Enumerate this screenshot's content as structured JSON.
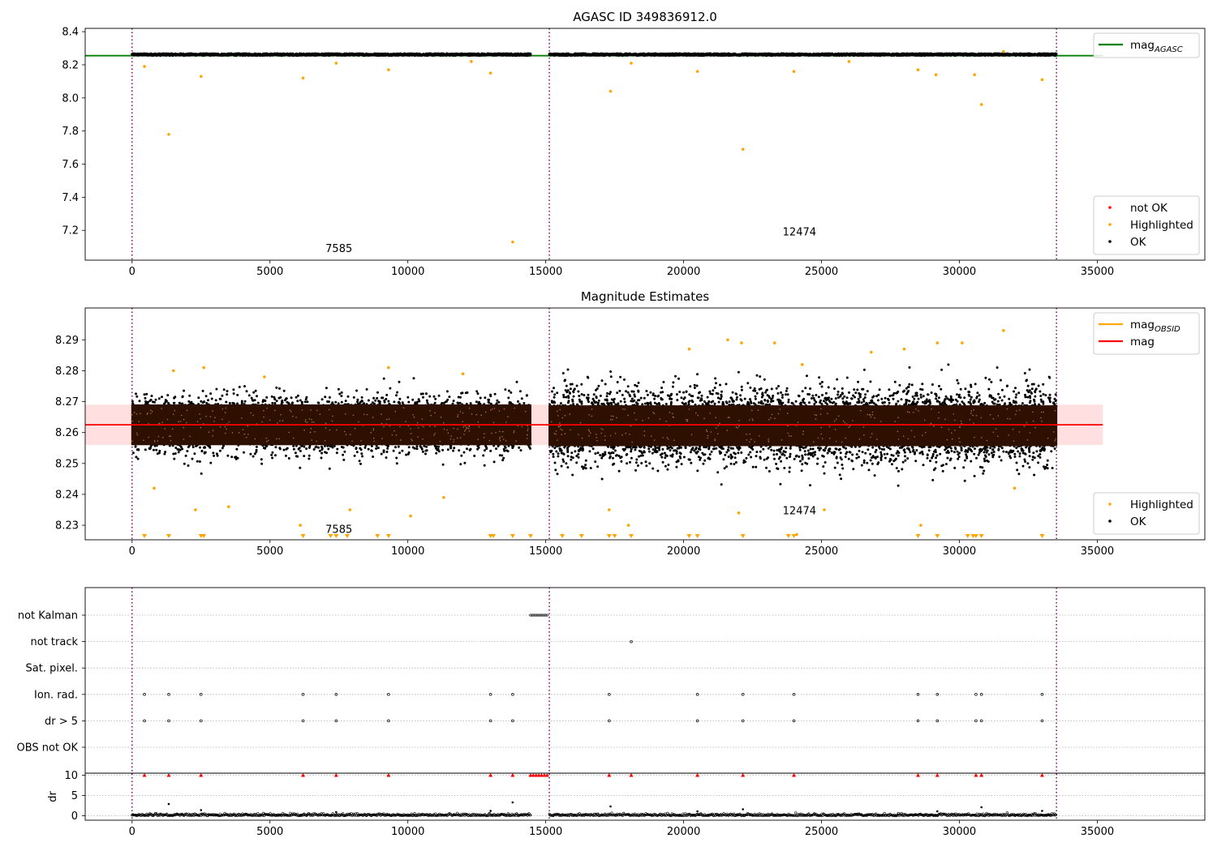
{
  "chart_data": [
    {
      "type": "scatter",
      "title": "AGASC ID 349836912.0",
      "xlim": [
        -1700,
        38900
      ],
      "ylim": [
        7.02,
        8.42
      ],
      "xticks": [
        0,
        5000,
        10000,
        15000,
        20000,
        25000,
        30000,
        35000
      ],
      "yticks": [
        7.2,
        7.4,
        7.6,
        7.8,
        8.0,
        8.2,
        8.4
      ],
      "obsid_boundaries": [
        0,
        15130,
        33520
      ],
      "obsid_labels": [
        {
          "text": "7585",
          "x": 7500,
          "y": 7.07
        },
        {
          "text": "12474",
          "x": 24200,
          "y": 7.17
        }
      ],
      "reference_lines": [
        {
          "name": "mag_AGASC",
          "y": 8.255,
          "x_range": [
            -1700,
            35200
          ],
          "color": "#008000"
        }
      ],
      "ok_band": {
        "center": 8.262,
        "spread": 0.012,
        "segments": [
          [
            0,
            14450
          ],
          [
            15130,
            33520
          ]
        ],
        "color": "#000000"
      },
      "highlighted_points": [
        {
          "x": 1330,
          "y": 7.78
        },
        {
          "x": 13800,
          "y": 7.13
        },
        {
          "x": 22150,
          "y": 7.69
        },
        {
          "x": 30800,
          "y": 7.96
        },
        {
          "x": 17350,
          "y": 8.04
        },
        {
          "x": 2500,
          "y": 8.13
        },
        {
          "x": 6200,
          "y": 8.12
        },
        {
          "x": 13000,
          "y": 8.15
        },
        {
          "x": 9300,
          "y": 8.17
        },
        {
          "x": 20500,
          "y": 8.16
        },
        {
          "x": 24000,
          "y": 8.16
        },
        {
          "x": 28500,
          "y": 8.17
        },
        {
          "x": 29150,
          "y": 8.14
        },
        {
          "x": 30550,
          "y": 8.14
        },
        {
          "x": 33000,
          "y": 8.11
        },
        {
          "x": 450,
          "y": 8.19
        },
        {
          "x": 7400,
          "y": 8.21
        },
        {
          "x": 12300,
          "y": 8.22
        },
        {
          "x": 18100,
          "y": 8.21
        },
        {
          "x": 26000,
          "y": 8.22
        },
        {
          "x": 31600,
          "y": 8.28
        }
      ],
      "colors": {
        "not_ok": "#ff0000",
        "highlighted": "#ffa500",
        "ok": "#000000"
      },
      "legends": [
        {
          "position": "top-right",
          "items": [
            {
              "kind": "line",
              "color": "#008000",
              "label": "mag",
              "sub": "AGASC"
            }
          ]
        },
        {
          "position": "bottom-right",
          "items": [
            {
              "kind": "dot",
              "color": "#ff0000",
              "label": "not OK"
            },
            {
              "kind": "dot",
              "color": "#ffa500",
              "label": "Highlighted"
            },
            {
              "kind": "dot",
              "color": "#000000",
              "label": "OK"
            }
          ]
        }
      ]
    },
    {
      "type": "scatter",
      "title": "Magnitude Estimates",
      "xlim": [
        -1700,
        38900
      ],
      "ylim": [
        8.2253,
        8.3003
      ],
      "xticks": [
        0,
        5000,
        10000,
        15000,
        20000,
        25000,
        30000,
        35000
      ],
      "yticks": [
        8.23,
        8.24,
        8.25,
        8.26,
        8.27,
        8.28,
        8.29
      ],
      "obsid_boundaries": [
        0,
        15130,
        33520
      ],
      "obsid_labels": [
        {
          "text": "7585",
          "x": 7500,
          "y": 8.2275
        },
        {
          "text": "12474",
          "x": 24200,
          "y": 8.2335
        }
      ],
      "mag": {
        "value": 8.2625,
        "band": [
          8.256,
          8.269
        ],
        "x_range": [
          -1700,
          35200
        ],
        "color": "#ff0000"
      },
      "ok_cloud": [
        {
          "x_range": [
            0,
            14450
          ],
          "center": 8.2625,
          "sigma": 0.0042
        },
        {
          "x_range": [
            15130,
            33520
          ],
          "center": 8.2622,
          "sigma": 0.0057
        }
      ],
      "highlighted_points": [
        {
          "x": 1500,
          "y": 8.28
        },
        {
          "x": 2600,
          "y": 8.281
        },
        {
          "x": 4800,
          "y": 8.278
        },
        {
          "x": 9300,
          "y": 8.281
        },
        {
          "x": 12000,
          "y": 8.279
        },
        {
          "x": 800,
          "y": 8.242
        },
        {
          "x": 2300,
          "y": 8.235
        },
        {
          "x": 3500,
          "y": 8.236
        },
        {
          "x": 6100,
          "y": 8.23
        },
        {
          "x": 7900,
          "y": 8.235
        },
        {
          "x": 10100,
          "y": 8.233
        },
        {
          "x": 11300,
          "y": 8.239
        },
        {
          "x": 17300,
          "y": 8.235
        },
        {
          "x": 18000,
          "y": 8.23
        },
        {
          "x": 20200,
          "y": 8.287
        },
        {
          "x": 21600,
          "y": 8.29
        },
        {
          "x": 22100,
          "y": 8.289
        },
        {
          "x": 23300,
          "y": 8.289
        },
        {
          "x": 24300,
          "y": 8.282
        },
        {
          "x": 26800,
          "y": 8.286
        },
        {
          "x": 28000,
          "y": 8.287
        },
        {
          "x": 29200,
          "y": 8.289
        },
        {
          "x": 30100,
          "y": 8.289
        },
        {
          "x": 31600,
          "y": 8.293
        },
        {
          "x": 22000,
          "y": 8.234
        },
        {
          "x": 25100,
          "y": 8.235
        },
        {
          "x": 28600,
          "y": 8.23
        },
        {
          "x": 24100,
          "y": 8.227
        },
        {
          "x": 32000,
          "y": 8.242
        }
      ],
      "clipped_markers_x": [
        450,
        1330,
        2500,
        2600,
        6200,
        7200,
        7400,
        7800,
        8900,
        9300,
        13000,
        13100,
        13800,
        14450,
        15600,
        16300,
        17300,
        17500,
        18100,
        20200,
        20500,
        22150,
        23800,
        24000,
        28500,
        29200,
        30300,
        30500,
        30600,
        30800,
        33000
      ],
      "colors": {
        "mag_obsid": "#ffa500",
        "mag": "#ff0000",
        "band": "#ffc0c0",
        "highlighted": "#ffa500",
        "ok": "#000000",
        "ok_core": "#2d1000"
      },
      "legends": [
        {
          "position": "top-right",
          "items": [
            {
              "kind": "line",
              "color": "#ffa500",
              "label": "mag",
              "sub": "OBSID"
            },
            {
              "kind": "line",
              "color": "#ff0000",
              "label": "mag"
            }
          ]
        },
        {
          "position": "bottom-right",
          "items": [
            {
              "kind": "dot",
              "color": "#ffa500",
              "label": "Highlighted"
            },
            {
              "kind": "dot",
              "color": "#000000",
              "label": "OK"
            }
          ]
        }
      ]
    },
    {
      "type": "scatter",
      "xlim": [
        -1700,
        38900
      ],
      "xticks": [
        0,
        5000,
        10000,
        15000,
        20000,
        25000,
        30000,
        35000
      ],
      "obsid_boundaries": [
        0,
        15130,
        33520
      ],
      "flag_rows": [
        "not Kalman",
        "not track",
        "Sat. pixel.",
        "Ion. rad.",
        "dr > 5",
        "OBS not OK"
      ],
      "flags": {
        "not Kalman": {
          "segments": [
            [
              14450,
              15050
            ]
          ]
        },
        "not track": {
          "points": [
            18100
          ]
        },
        "Sat. pixel.": {
          "points": []
        },
        "Ion. rad.": {
          "points": [
            450,
            1330,
            2500,
            6200,
            7400,
            9300,
            13000,
            13800,
            17300,
            20500,
            22150,
            24000,
            28500,
            29200,
            30600,
            30800,
            33000
          ]
        },
        "dr > 5": {
          "points": [
            450,
            1330,
            2500,
            6200,
            7400,
            9300,
            13000,
            13800,
            17300,
            20500,
            22150,
            24000,
            28500,
            29200,
            30600,
            30800,
            33000
          ]
        },
        "OBS not OK": {
          "points": []
        }
      },
      "dr": {
        "ylabel": "dr",
        "yticks": [
          0,
          5,
          10
        ],
        "ylim": [
          -0.5,
          10.5
        ],
        "clipped_at_10_x": [
          450,
          1330,
          2500,
          6200,
          7400,
          9300,
          13000,
          13800,
          14450,
          14550,
          14650,
          14750,
          14850,
          14950,
          15050,
          17300,
          18100,
          20500,
          22150,
          24000,
          28500,
          29200,
          30600,
          30800,
          33000
        ],
        "spikes": [
          {
            "x": 1330,
            "y": 2.9
          },
          {
            "x": 13800,
            "y": 3.3
          },
          {
            "x": 17350,
            "y": 2.3
          },
          {
            "x": 30800,
            "y": 2.1
          },
          {
            "x": 2500,
            "y": 1.4
          },
          {
            "x": 13000,
            "y": 1.2
          },
          {
            "x": 20500,
            "y": 1.1
          },
          {
            "x": 22150,
            "y": 1.6
          },
          {
            "x": 33000,
            "y": 1.2
          },
          {
            "x": 29200,
            "y": 1.1
          },
          {
            "x": 7400,
            "y": 0.9
          }
        ]
      },
      "colors": {
        "ok": "#000000",
        "clipped": "#ff0000"
      }
    }
  ]
}
